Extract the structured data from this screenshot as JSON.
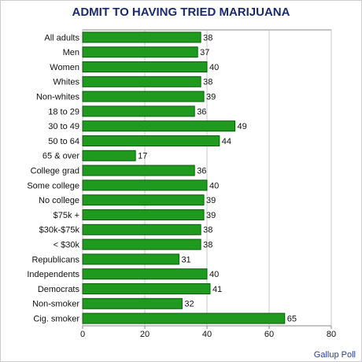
{
  "chart_data": {
    "type": "bar",
    "orientation": "horizontal",
    "title": "ADMIT TO HAVING TRIED MARIJUANA",
    "categories": [
      "All adults",
      "Men",
      "Women",
      "Whites",
      "Non-whites",
      "18 to 29",
      "30 to 49",
      "50 to 64",
      "65 & over",
      "College grad",
      "Some college",
      "No college",
      "$75k +",
      "$30k-$75k",
      "< $30k",
      "Republicans",
      "Independents",
      "Democrats",
      "Non-smoker",
      "Cig. smoker"
    ],
    "values": [
      38,
      37,
      40,
      38,
      39,
      36,
      49,
      44,
      17,
      36,
      40,
      39,
      39,
      38,
      38,
      31,
      40,
      41,
      32,
      65
    ],
    "color": "#1f9a1f",
    "xlim": [
      0,
      80
    ],
    "xticks": [
      0,
      20,
      40,
      60,
      80
    ],
    "grid": true,
    "note": "Gallup Poll"
  }
}
